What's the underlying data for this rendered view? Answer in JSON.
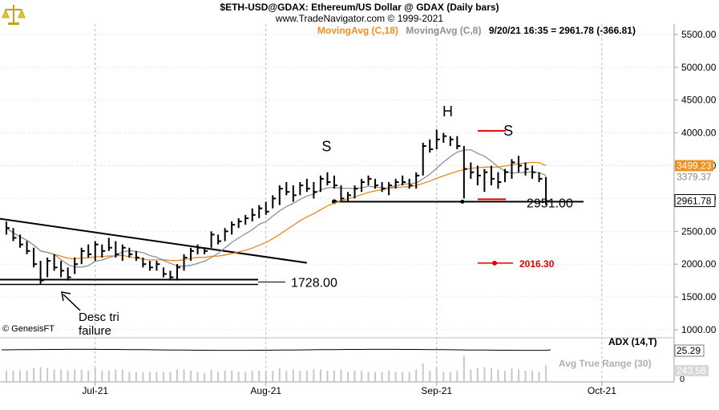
{
  "header": {
    "title": "$ETH-USD@GDAX:  Ethereum/US Dollar @ GDAX  (Daily bars)",
    "subtitle": "www.TradeNavigator.com © 1999-2021"
  },
  "legend": {
    "ma18_label": "MovingAvg (C,18)",
    "ma8_label": "MovingAvg (C,8)",
    "quote": "9/20/21 16:35 = 2961.78 (-366.81)"
  },
  "colors": {
    "price_bars": "#000000",
    "ma18": "#e8891c",
    "ma8": "#909090",
    "annotation_red": "#e00000",
    "title_orange": "#f09020",
    "axis_gray": "#a0a0a0"
  },
  "copyright": "© GenesisFT",
  "indicators": {
    "adx_label": "ADX (14,T)",
    "adx_value": "25.29",
    "atr_label": "Avg True Range (30)",
    "atr_value": "243.58"
  },
  "chart_data": {
    "type": "ohlc",
    "yticks": [
      "5500.00",
      "5000.00",
      "4500.00",
      "4000.00",
      "3500.00",
      "3000.00",
      "2500.00",
      "2000.00",
      "1500.00",
      "1000.00"
    ],
    "ylim": [
      1000,
      5700
    ],
    "xticks": [
      {
        "label": "Jul-21",
        "day": 0
      },
      {
        "label": "Aug-21",
        "day": 31
      },
      {
        "label": "Sep-21",
        "day": 62
      },
      {
        "label": "Oct-21",
        "day": 92
      }
    ],
    "price_labels": {
      "ma18_value": "3499.23",
      "ma8_value": "3379.37",
      "last_value": "2961.78"
    },
    "bars": [
      [
        2650,
        2450,
        2550
      ],
      [
        2550,
        2350,
        2400
      ],
      [
        2450,
        2250,
        2300
      ],
      [
        2350,
        2150,
        2200
      ],
      [
        2250,
        1950,
        2000
      ],
      [
        2050,
        1700,
        1750
      ],
      [
        2100,
        1800,
        2050
      ],
      [
        2150,
        1900,
        1950
      ],
      [
        2050,
        1800,
        1900
      ],
      [
        1950,
        1750,
        1800
      ],
      [
        2100,
        1850,
        2000
      ],
      [
        2250,
        2000,
        2200
      ],
      [
        2300,
        2100,
        2150
      ],
      [
        2350,
        2050,
        2300
      ],
      [
        2300,
        2100,
        2200
      ],
      [
        2400,
        2200,
        2250
      ],
      [
        2350,
        2100,
        2150
      ],
      [
        2300,
        2050,
        2250
      ],
      [
        2250,
        2100,
        2150
      ],
      [
        2200,
        2050,
        2100
      ],
      [
        2100,
        1950,
        2000
      ],
      [
        2050,
        1900,
        1950
      ],
      [
        2050,
        1900,
        2000
      ],
      [
        1950,
        1800,
        1850
      ],
      [
        1900,
        1750,
        1800
      ],
      [
        2000,
        1750,
        1950
      ],
      [
        2150,
        1900,
        2100
      ],
      [
        2250,
        2050,
        2200
      ],
      [
        2300,
        2150,
        2250
      ],
      [
        2250,
        2150,
        2200
      ],
      [
        2500,
        2250,
        2450
      ],
      [
        2450,
        2300,
        2350
      ],
      [
        2550,
        2350,
        2500
      ],
      [
        2650,
        2450,
        2600
      ],
      [
        2700,
        2550,
        2650
      ],
      [
        2750,
        2600,
        2700
      ],
      [
        2850,
        2650,
        2750
      ],
      [
        2900,
        2700,
        2850
      ],
      [
        2950,
        2750,
        2800
      ],
      [
        3050,
        2850,
        3000
      ],
      [
        3200,
        2900,
        3150
      ],
      [
        3250,
        3050,
        3100
      ],
      [
        3200,
        2950,
        3050
      ],
      [
        3250,
        3050,
        3200
      ],
      [
        3300,
        3100,
        3150
      ],
      [
        3250,
        3000,
        3100
      ],
      [
        3350,
        3100,
        3300
      ],
      [
        3400,
        3200,
        3250
      ],
      [
        3350,
        3150,
        3200
      ],
      [
        3200,
        2950,
        3000
      ],
      [
        3100,
        2950,
        3050
      ],
      [
        3200,
        3000,
        3150
      ],
      [
        3300,
        3100,
        3250
      ],
      [
        3350,
        3200,
        3300
      ],
      [
        3300,
        3150,
        3200
      ],
      [
        3250,
        3100,
        3150
      ],
      [
        3250,
        3050,
        3200
      ],
      [
        3300,
        3150,
        3250
      ],
      [
        3350,
        3200,
        3250
      ],
      [
        3300,
        3150,
        3200
      ],
      [
        3400,
        3150,
        3350
      ],
      [
        3850,
        3350,
        3800
      ],
      [
        3900,
        3700,
        3750
      ],
      [
        4050,
        3750,
        3900
      ],
      [
        4000,
        3850,
        3950
      ],
      [
        3950,
        3800,
        3900
      ],
      [
        3950,
        3750,
        3800
      ],
      [
        3800,
        3000,
        3450
      ],
      [
        3550,
        3300,
        3400
      ],
      [
        3500,
        3200,
        3350
      ],
      [
        3450,
        3100,
        3400
      ],
      [
        3500,
        3200,
        3300
      ],
      [
        3400,
        3150,
        3250
      ],
      [
        3450,
        3250,
        3400
      ],
      [
        3600,
        3300,
        3550
      ],
      [
        3650,
        3400,
        3500
      ],
      [
        3550,
        3350,
        3450
      ],
      [
        3500,
        3300,
        3400
      ],
      [
        3400,
        3250,
        3300
      ],
      [
        3330,
        2900,
        2961.78
      ]
    ],
    "trendline": {
      "from": [
        -1,
        2700
      ],
      "to": [
        44,
        2020
      ]
    },
    "support_line": {
      "value": 1728,
      "label": "1728.00"
    },
    "neckline": {
      "value": 2951,
      "label": "2951.00"
    },
    "target": {
      "value": 2016.3,
      "label": "2016.30"
    },
    "pattern_labels": [
      {
        "text": "S",
        "day": 42,
        "value": 3720
      },
      {
        "text": "H",
        "day": 64,
        "value": 4250
      },
      {
        "text": "S",
        "day": 75,
        "value": 3960
      }
    ],
    "annotation": {
      "line1": "Desc tri",
      "line2": "failure"
    }
  }
}
